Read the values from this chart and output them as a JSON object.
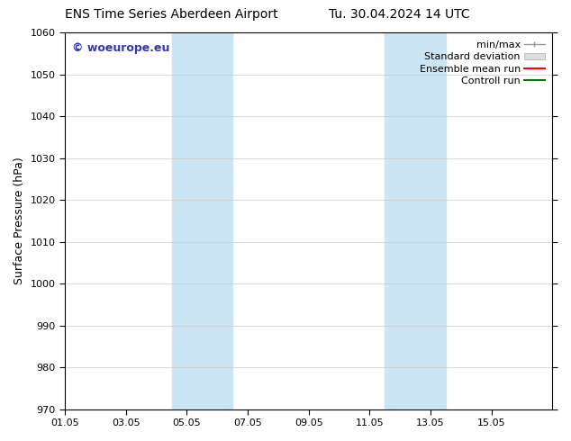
{
  "title_left": "ENS Time Series Aberdeen Airport",
  "title_right": "Tu. 30.04.2024 14 UTC",
  "ylabel": "Surface Pressure (hPa)",
  "ylim": [
    970,
    1060
  ],
  "yticks": [
    970,
    980,
    990,
    1000,
    1010,
    1020,
    1030,
    1040,
    1050,
    1060
  ],
  "xtick_labels": [
    "01.05",
    "03.05",
    "05.05",
    "07.05",
    "09.05",
    "11.05",
    "13.05",
    "15.05"
  ],
  "xtick_positions": [
    0,
    2,
    4,
    6,
    8,
    10,
    12,
    14
  ],
  "xlim": [
    0,
    16
  ],
  "shaded_bands": [
    {
      "x_start": 3.5,
      "x_end": 5.5,
      "color": "#cce5f5"
    },
    {
      "x_start": 10.5,
      "x_end": 12.5,
      "color": "#cce5f5"
    }
  ],
  "watermark_text": "© woeurope.eu",
  "watermark_color": "#3333bb",
  "background_color": "#ffffff",
  "legend_items": [
    {
      "label": "min/max",
      "color": "#aaaaaa",
      "lw": 1.0
    },
    {
      "label": "Standard deviation",
      "color": "#cccccc",
      "lw": 6
    },
    {
      "label": "Ensemble mean run",
      "color": "#ff0000",
      "lw": 1.5
    },
    {
      "label": "Controll run",
      "color": "#007700",
      "lw": 1.5
    }
  ],
  "title_fontsize": 10,
  "axis_label_fontsize": 9,
  "tick_fontsize": 8,
  "legend_fontsize": 8,
  "watermark_fontsize": 9
}
